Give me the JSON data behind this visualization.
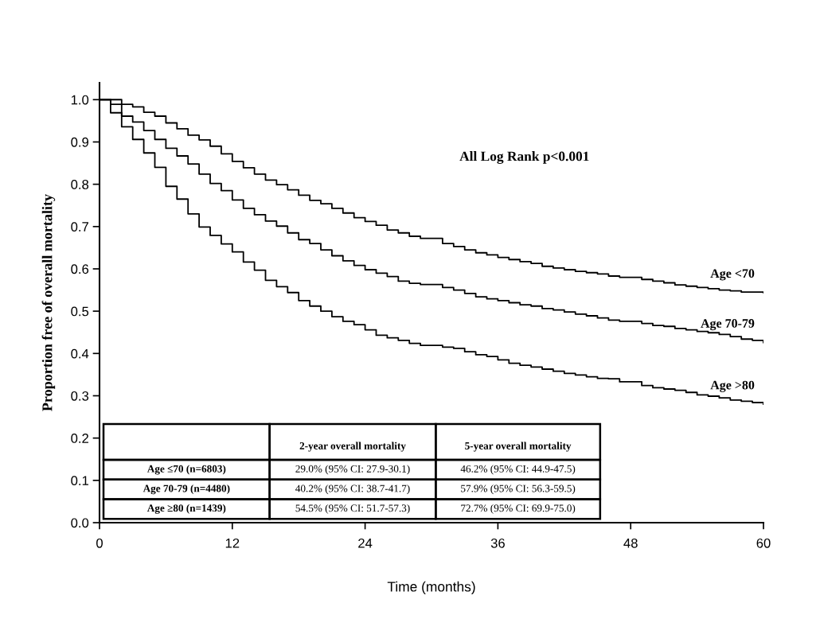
{
  "chart_data": {
    "type": "step",
    "xlabel": "Time (months)",
    "ylabel": "Proportion free of overall mortality",
    "xlim": [
      0,
      60
    ],
    "xticks": [
      0,
      12,
      24,
      36,
      48,
      60
    ],
    "ylim": [
      0,
      1.04
    ],
    "yticks": [
      {
        "value": 0,
        "label": "0.0"
      },
      0.1,
      0.2,
      0.3,
      0.4,
      0.5,
      0.6,
      0.7,
      0.8,
      0.9,
      {
        "value": 1,
        "label": "1.0"
      }
    ],
    "grid": false,
    "legend": false,
    "marker": "none",
    "line_style": "solid",
    "series": [
      {
        "name": "Age <70",
        "color": "#000000",
        "x": [
          0,
          1,
          3,
          4,
          5,
          6,
          7,
          8,
          9,
          10,
          11,
          12,
          13,
          14,
          15,
          16,
          17,
          18,
          19,
          20,
          21,
          22,
          23,
          24,
          25,
          26,
          27,
          28,
          29,
          31,
          32,
          33,
          34,
          35,
          36,
          37,
          38,
          39,
          40,
          41,
          42,
          43,
          44,
          45,
          46,
          47,
          49,
          50,
          51,
          52,
          53,
          54,
          55,
          56,
          57,
          58,
          60
        ],
        "values": [
          1.0,
          0.989,
          0.983,
          0.97,
          0.961,
          0.945,
          0.931,
          0.916,
          0.905,
          0.89,
          0.872,
          0.854,
          0.839,
          0.824,
          0.81,
          0.799,
          0.787,
          0.774,
          0.762,
          0.754,
          0.743,
          0.732,
          0.721,
          0.712,
          0.703,
          0.692,
          0.685,
          0.677,
          0.672,
          0.66,
          0.653,
          0.645,
          0.638,
          0.633,
          0.627,
          0.622,
          0.617,
          0.613,
          0.606,
          0.602,
          0.598,
          0.594,
          0.591,
          0.588,
          0.583,
          0.58,
          0.575,
          0.571,
          0.567,
          0.562,
          0.559,
          0.556,
          0.553,
          0.55,
          0.548,
          0.545,
          0.544
        ]
      },
      {
        "name": "Age 70-79",
        "color": "#000000",
        "x": [
          0,
          1,
          2,
          3,
          4,
          5,
          6,
          7,
          8,
          9,
          10,
          11,
          12,
          13,
          14,
          15,
          16,
          17,
          18,
          19,
          20,
          21,
          22,
          23,
          24,
          25,
          26,
          27,
          28,
          29,
          31,
          32,
          33,
          34,
          35,
          36,
          37,
          38,
          39,
          40,
          41,
          42,
          43,
          44,
          45,
          46,
          47,
          49,
          50,
          51,
          52,
          53,
          54,
          55,
          56,
          57,
          58,
          59,
          60
        ],
        "values": [
          1.0,
          0.969,
          0.961,
          0.947,
          0.927,
          0.906,
          0.885,
          0.867,
          0.848,
          0.824,
          0.802,
          0.785,
          0.763,
          0.743,
          0.728,
          0.713,
          0.701,
          0.685,
          0.669,
          0.66,
          0.645,
          0.631,
          0.619,
          0.608,
          0.598,
          0.59,
          0.582,
          0.571,
          0.566,
          0.563,
          0.556,
          0.55,
          0.542,
          0.534,
          0.529,
          0.525,
          0.52,
          0.515,
          0.512,
          0.506,
          0.503,
          0.498,
          0.493,
          0.489,
          0.484,
          0.479,
          0.476,
          0.471,
          0.466,
          0.464,
          0.459,
          0.456,
          0.452,
          0.449,
          0.445,
          0.44,
          0.434,
          0.431,
          0.426
        ]
      },
      {
        "name": "Age >80",
        "color": "#000000",
        "x": [
          0,
          2,
          3,
          4,
          5,
          6,
          7,
          8,
          9,
          10,
          11,
          12,
          13,
          14,
          15,
          16,
          17,
          18,
          19,
          20,
          21,
          22,
          23,
          24,
          25,
          26,
          27,
          28,
          29,
          31,
          32,
          33,
          34,
          35,
          36,
          37,
          38,
          39,
          40,
          41,
          42,
          43,
          44,
          45,
          46,
          47,
          49,
          50,
          51,
          52,
          53,
          54,
          55,
          56,
          57,
          58,
          59,
          60
        ],
        "values": [
          1.0,
          0.936,
          0.906,
          0.874,
          0.84,
          0.795,
          0.765,
          0.73,
          0.699,
          0.679,
          0.659,
          0.64,
          0.616,
          0.597,
          0.573,
          0.558,
          0.544,
          0.525,
          0.512,
          0.5,
          0.487,
          0.476,
          0.468,
          0.456,
          0.443,
          0.437,
          0.431,
          0.424,
          0.419,
          0.415,
          0.412,
          0.404,
          0.397,
          0.393,
          0.385,
          0.377,
          0.372,
          0.368,
          0.363,
          0.358,
          0.353,
          0.349,
          0.345,
          0.341,
          0.34,
          0.333,
          0.324,
          0.319,
          0.316,
          0.313,
          0.308,
          0.302,
          0.299,
          0.295,
          0.29,
          0.287,
          0.284,
          0.28
        ]
      }
    ],
    "annotations": [
      "All Log Rank p<0.001",
      "2-year overall mortality",
      "5-year overall mortality",
      "Age ≤70 (n=6803)",
      "29.0% (95% CI: 27.9-30.1)",
      "46.2% (95% CI: 44.9-47.5)",
      "Age 70-79 (n=4480)",
      "40.2% (95% CI: 38.7-41.7)",
      "57.9% (95% CI: 56.3-59.5)",
      "Age ≥80 (n=1439)",
      "54.5% (95% CI: 51.7-57.3)",
      "72.7% (95% CI: 69.9-75.0)"
    ]
  }
}
